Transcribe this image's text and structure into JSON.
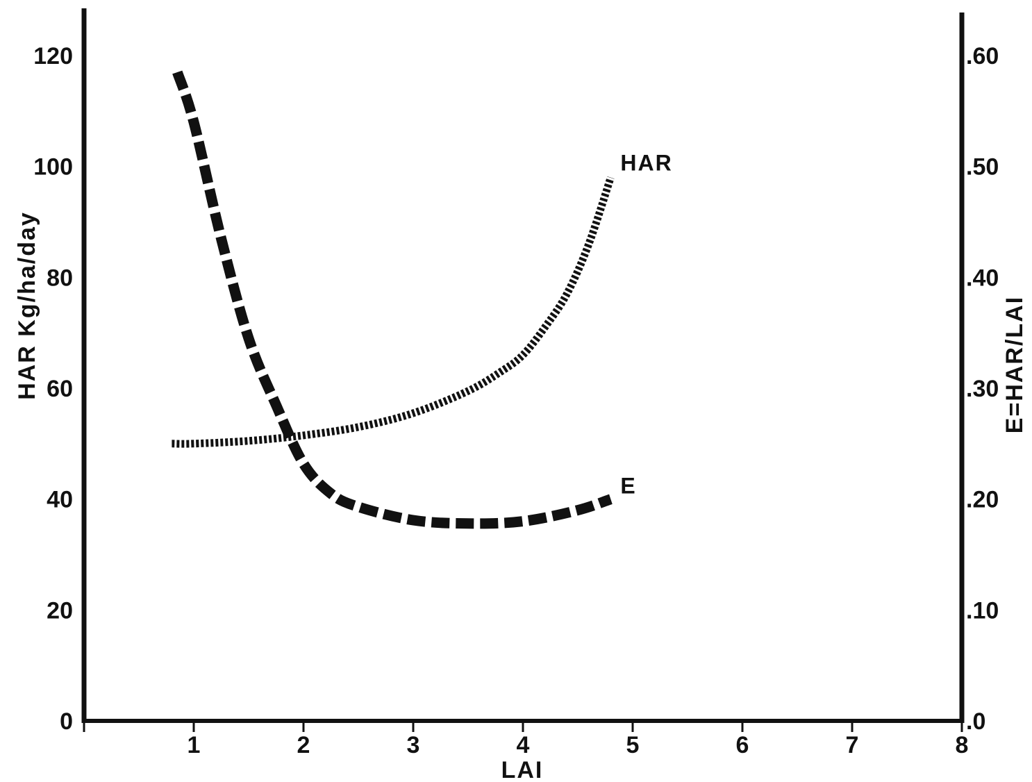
{
  "chart_data": {
    "type": "line",
    "title": "",
    "xlabel": "LAI",
    "ylabel_left": "HAR Kg/ha/day",
    "ylabel_right": "E=HAR/LAI",
    "xlim": [
      0,
      8
    ],
    "ylim_left": [
      0,
      120
    ],
    "ylim_right": [
      0,
      0.6
    ],
    "x_ticks": [
      1,
      2,
      3,
      4,
      5,
      6,
      7,
      8
    ],
    "x_tick_labels": [
      "1",
      "2",
      "3",
      "4",
      "5",
      "6",
      "7",
      "8"
    ],
    "y_left_ticks": [
      0,
      20,
      40,
      60,
      80,
      100,
      120
    ],
    "y_left_tick_labels": [
      "0",
      "20",
      "40",
      "60",
      "80",
      "100",
      "120"
    ],
    "y_right_ticks": [
      0,
      0.1,
      0.2,
      0.3,
      0.4,
      0.5,
      0.6
    ],
    "y_right_tick_labels": [
      ".0",
      ".10",
      ".20",
      ".30",
      ".40",
      ".50",
      ".60"
    ],
    "grid": false,
    "series": [
      {
        "name": "HAR",
        "axis": "left",
        "style": "dotted",
        "color": "#111111",
        "x": [
          0.8,
          1.0,
          1.5,
          2.0,
          2.5,
          3.0,
          3.5,
          3.8,
          4.0,
          4.2,
          4.4,
          4.6,
          4.8
        ],
        "y": [
          50,
          50,
          50.5,
          51.5,
          53,
          55.5,
          59.5,
          63,
          66,
          71,
          77,
          86,
          98
        ]
      },
      {
        "name": "E",
        "axis": "right",
        "style": "dashed",
        "color": "#111111",
        "x": [
          0.85,
          1.0,
          1.25,
          1.5,
          1.75,
          2.0,
          2.25,
          2.5,
          3.0,
          3.5,
          4.0,
          4.5,
          4.8
        ],
        "y": [
          0.585,
          0.54,
          0.435,
          0.345,
          0.285,
          0.232,
          0.205,
          0.193,
          0.181,
          0.178,
          0.18,
          0.19,
          0.2
        ]
      }
    ]
  }
}
